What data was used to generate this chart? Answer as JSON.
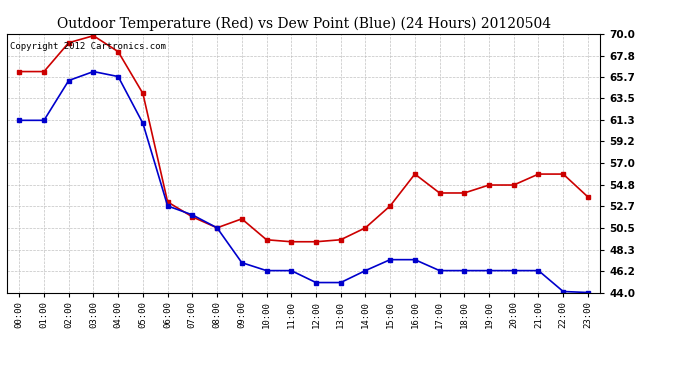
{
  "title": "Outdoor Temperature (Red) vs Dew Point (Blue) (24 Hours) 20120504",
  "copyright": "Copyright 2012 Cartronics.com",
  "x_labels": [
    "00:00",
    "01:00",
    "02:00",
    "03:00",
    "04:00",
    "05:00",
    "06:00",
    "07:00",
    "08:00",
    "09:00",
    "10:00",
    "11:00",
    "12:00",
    "13:00",
    "14:00",
    "15:00",
    "16:00",
    "17:00",
    "18:00",
    "19:00",
    "20:00",
    "21:00",
    "22:00",
    "23:00"
  ],
  "temp_red": [
    66.2,
    66.2,
    69.1,
    69.8,
    68.2,
    64.0,
    53.1,
    51.6,
    50.5,
    51.4,
    49.3,
    49.1,
    49.1,
    49.3,
    50.5,
    52.7,
    55.9,
    54.0,
    54.0,
    54.8,
    54.8,
    55.9,
    55.9,
    53.6
  ],
  "dew_blue": [
    61.3,
    61.3,
    65.3,
    66.2,
    65.7,
    61.0,
    52.7,
    51.8,
    50.5,
    47.0,
    46.2,
    46.2,
    45.0,
    45.0,
    46.2,
    47.3,
    47.3,
    46.2,
    46.2,
    46.2,
    46.2,
    46.2,
    44.1,
    44.0
  ],
  "ylim_min": 44.0,
  "ylim_max": 70.0,
  "yticks": [
    44.0,
    46.2,
    48.3,
    50.5,
    52.7,
    54.8,
    57.0,
    59.2,
    61.3,
    63.5,
    65.7,
    67.8,
    70.0
  ],
  "bg_color": "#ffffff",
  "grid_color": "#bbbbbb",
  "red_color": "#cc0000",
  "blue_color": "#0000cc",
  "title_fontsize": 10,
  "copyright_fontsize": 6.5
}
